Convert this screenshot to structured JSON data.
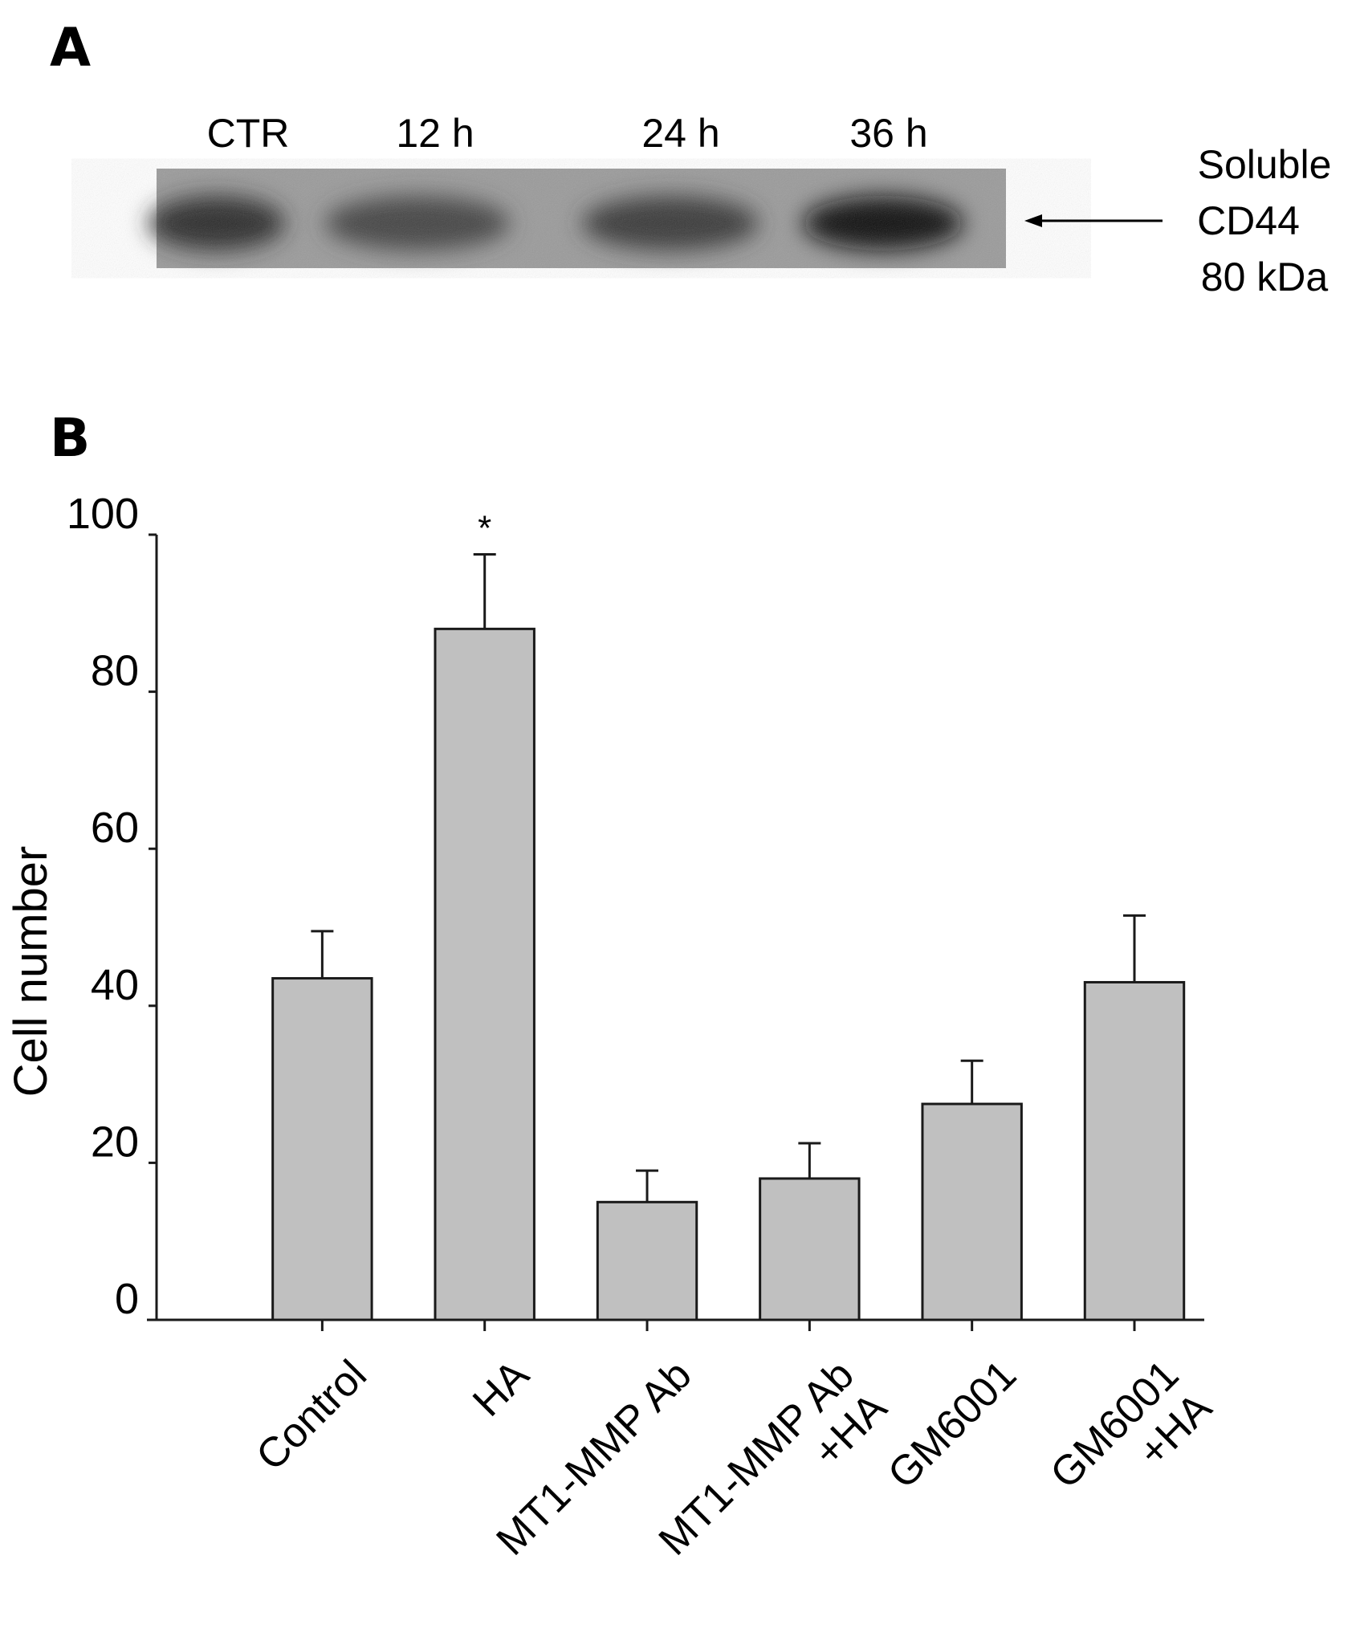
{
  "panel_a": {
    "label": "A",
    "lanes": [
      "CTR",
      "12 h",
      "24 h",
      "36 h"
    ],
    "band_intensity": [
      0.78,
      0.6,
      0.68,
      0.95
    ],
    "annotation": [
      "Soluble",
      "CD44",
      "80 kDa"
    ]
  },
  "panel_b": {
    "label": "B"
  },
  "chart_data": {
    "type": "bar",
    "categories": [
      [
        "Control"
      ],
      [
        "HA"
      ],
      [
        "MT1-MMP Ab"
      ],
      [
        "MT1-MMP Ab",
        "+HA"
      ],
      [
        "GM6001"
      ],
      [
        "GM6001",
        "+HA"
      ]
    ],
    "values": [
      43.5,
      88,
      15,
      18,
      27.5,
      43
    ],
    "errors": [
      6,
      9.5,
      4,
      4.5,
      5.5,
      8.5
    ],
    "significance": [
      "",
      "*",
      "",
      "",
      "",
      ""
    ],
    "ylabel": "Cell number",
    "xlabel": "",
    "ylim": [
      0,
      100
    ],
    "yticks": [
      0,
      20,
      40,
      60,
      80,
      100
    ],
    "grid": false,
    "bar_color": "#c0c0c0",
    "edge_color": "#1a1a1a"
  }
}
